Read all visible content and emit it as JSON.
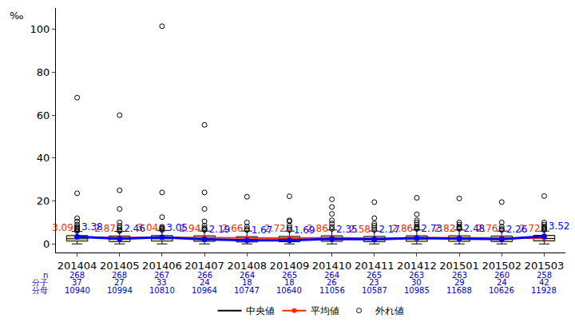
{
  "chart_data": {
    "type": "box",
    "categories": [
      "201404",
      "201405",
      "201406",
      "201407",
      "201408",
      "201409",
      "201410",
      "201411",
      "201412",
      "201501",
      "201502",
      "201503"
    ],
    "ylabel": "‰",
    "ylim": [
      -4,
      110
    ],
    "yticks": [
      0,
      20,
      40,
      60,
      80,
      100
    ],
    "legend": "bottom",
    "data_labels": true,
    "box": {
      "name": "中央値",
      "color": "#000000",
      "fill": "#e8e0a0",
      "q1": [
        1.3,
        1.1,
        1.3,
        1.2,
        0.9,
        1.0,
        1.2,
        1.0,
        1.2,
        1.2,
        1.1,
        1.4
      ],
      "median": [
        2.4,
        2.2,
        2.4,
        2.3,
        2.0,
        2.1,
        2.3,
        2.0,
        2.3,
        2.3,
        2.2,
        2.5
      ],
      "q3": [
        3.9,
        3.7,
        3.9,
        3.8,
        3.4,
        3.5,
        3.8,
        3.5,
        3.8,
        3.8,
        3.7,
        4.0
      ],
      "lowerfence": [
        0,
        0,
        0,
        0,
        0,
        0,
        0,
        0,
        0,
        0,
        0,
        0
      ],
      "upperfence": [
        5.8,
        5.8,
        6.2,
        6.0,
        6.0,
        6.0,
        6.5,
        6.0,
        6.5,
        6.5,
        6.0,
        6.0
      ]
    },
    "outliers": {
      "name": "外れ値",
      "marker": "circle-open",
      "values": [
        [
          68.2,
          23.6,
          12,
          10.5,
          9,
          8,
          7.5,
          7,
          6.5,
          6
        ],
        [
          60,
          25,
          16.3,
          10,
          8.5,
          7.5,
          6.5,
          6
        ],
        [
          101.5,
          24,
          12.5,
          8,
          7.5,
          7,
          6.5
        ],
        [
          55.5,
          24,
          16.3,
          10.5,
          8.5,
          7.5,
          7,
          6.5
        ],
        [
          22,
          10,
          8,
          7,
          6.5
        ],
        [
          22.2,
          11,
          10.5,
          8.5,
          7.5,
          6.5
        ],
        [
          20.8,
          17.2,
          14,
          11,
          9.5,
          8,
          7
        ],
        [
          19.5,
          12,
          9.5,
          8.5,
          7.5,
          6.5
        ],
        [
          21.5,
          13.8,
          11,
          10,
          9,
          8,
          7.5,
          7
        ],
        [
          21.2,
          10,
          9,
          8,
          7.5,
          7
        ],
        [
          19.5,
          10,
          8,
          7,
          6.5
        ],
        [
          22.3,
          10,
          9,
          8,
          7.5,
          7,
          6.5
        ]
      ]
    },
    "series": [
      {
        "name": "平均値",
        "color": "#ff2a00",
        "marker": "circle",
        "label_side": "left",
        "values": [
          3.09,
          2.87,
          3.04,
          2.94,
          2.66,
          2.72,
          2.86,
          2.58,
          2.86,
          2.82,
          2.76,
          2.72
        ]
      },
      {
        "color": "#0000ff",
        "marker": "circle",
        "label_side": "right",
        "values": [
          3.38,
          2.46,
          3.05,
          2.19,
          1.67,
          1.69,
          2.35,
          2.17,
          2.73,
          2.48,
          2.26,
          3.52
        ]
      }
    ],
    "table": {
      "color": "#0000cc",
      "rows": [
        {
          "label": "n",
          "values": [
            268,
            268,
            267,
            266,
            264,
            265,
            264,
            265,
            263,
            263,
            260,
            258
          ]
        },
        {
          "label": "分子",
          "values": [
            37,
            27,
            33,
            24,
            18,
            18,
            26,
            23,
            30,
            29,
            24,
            42
          ]
        },
        {
          "label": "分母",
          "values": [
            10940,
            10994,
            10810,
            10964,
            10747,
            10640,
            11056,
            10587,
            10985,
            11688,
            10626,
            11928
          ]
        }
      ]
    }
  }
}
